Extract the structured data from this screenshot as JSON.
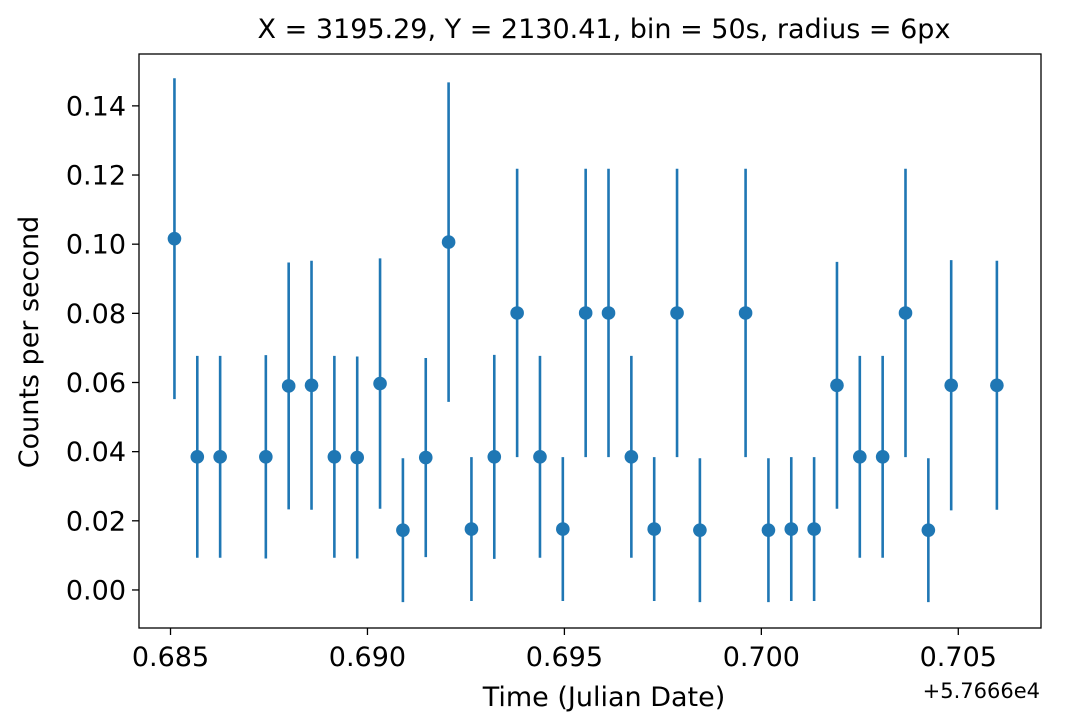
{
  "chart_data": {
    "type": "scatter",
    "title": "X = 3195.29, Y = 2130.41, bin = 50s, radius = 6px",
    "xlabel": "Time (Julian Date)",
    "ylabel": "Counts per second",
    "x_offset_label": "+5.7666e4",
    "xlim": [
      0.6842,
      0.7071
    ],
    "ylim": [
      -0.011,
      0.155
    ],
    "x_ticks": [
      0.685,
      0.69,
      0.695,
      0.7,
      0.705
    ],
    "x_tick_labels": [
      "0.685",
      "0.690",
      "0.695",
      "0.700",
      "0.705"
    ],
    "y_ticks": [
      0.0,
      0.02,
      0.04,
      0.06,
      0.08,
      0.1,
      0.12,
      0.14
    ],
    "y_tick_labels": [
      "0.00",
      "0.02",
      "0.04",
      "0.06",
      "0.08",
      "0.10",
      "0.12",
      "0.14"
    ],
    "grid": false,
    "color": "#1f77b4",
    "series": [
      {
        "points": [
          {
            "x": 0.6851,
            "y": 0.1016,
            "err": 0.0464
          },
          {
            "x": 0.68568,
            "y": 0.0385,
            "err": 0.0292
          },
          {
            "x": 0.68626,
            "y": 0.0385,
            "err": 0.0292
          },
          {
            "x": 0.68742,
            "y": 0.0385,
            "err": 0.0294
          },
          {
            "x": 0.688,
            "y": 0.059,
            "err": 0.0357
          },
          {
            "x": 0.68858,
            "y": 0.0592,
            "err": 0.036
          },
          {
            "x": 0.68916,
            "y": 0.0385,
            "err": 0.0292
          },
          {
            "x": 0.68974,
            "y": 0.0383,
            "err": 0.0292
          },
          {
            "x": 0.69032,
            "y": 0.0597,
            "err": 0.0362
          },
          {
            "x": 0.6909,
            "y": 0.0173,
            "err": 0.0208
          },
          {
            "x": 0.69148,
            "y": 0.0383,
            "err": 0.0288
          },
          {
            "x": 0.69206,
            "y": 0.1006,
            "err": 0.0462
          },
          {
            "x": 0.69264,
            "y": 0.0176,
            "err": 0.0208
          },
          {
            "x": 0.69322,
            "y": 0.0385,
            "err": 0.0295
          },
          {
            "x": 0.6938,
            "y": 0.0801,
            "err": 0.0417
          },
          {
            "x": 0.69438,
            "y": 0.0385,
            "err": 0.0292
          },
          {
            "x": 0.69496,
            "y": 0.0176,
            "err": 0.0208
          },
          {
            "x": 0.69554,
            "y": 0.0801,
            "err": 0.0417
          },
          {
            "x": 0.69612,
            "y": 0.0801,
            "err": 0.0417
          },
          {
            "x": 0.6967,
            "y": 0.0385,
            "err": 0.0292
          },
          {
            "x": 0.69728,
            "y": 0.0176,
            "err": 0.0208
          },
          {
            "x": 0.69786,
            "y": 0.0801,
            "err": 0.0417
          },
          {
            "x": 0.69844,
            "y": 0.0173,
            "err": 0.0208
          },
          {
            "x": 0.6996,
            "y": 0.0801,
            "err": 0.0417
          },
          {
            "x": 0.70018,
            "y": 0.0173,
            "err": 0.0208
          },
          {
            "x": 0.70076,
            "y": 0.0176,
            "err": 0.0208
          },
          {
            "x": 0.70134,
            "y": 0.0176,
            "err": 0.0208
          },
          {
            "x": 0.70192,
            "y": 0.0592,
            "err": 0.0357
          },
          {
            "x": 0.7025,
            "y": 0.0385,
            "err": 0.0292
          },
          {
            "x": 0.70308,
            "y": 0.0385,
            "err": 0.0292
          },
          {
            "x": 0.70366,
            "y": 0.0801,
            "err": 0.0417
          },
          {
            "x": 0.70424,
            "y": 0.0173,
            "err": 0.0208
          },
          {
            "x": 0.70482,
            "y": 0.0592,
            "err": 0.0362
          },
          {
            "x": 0.70598,
            "y": 0.0592,
            "err": 0.036
          }
        ]
      }
    ]
  }
}
